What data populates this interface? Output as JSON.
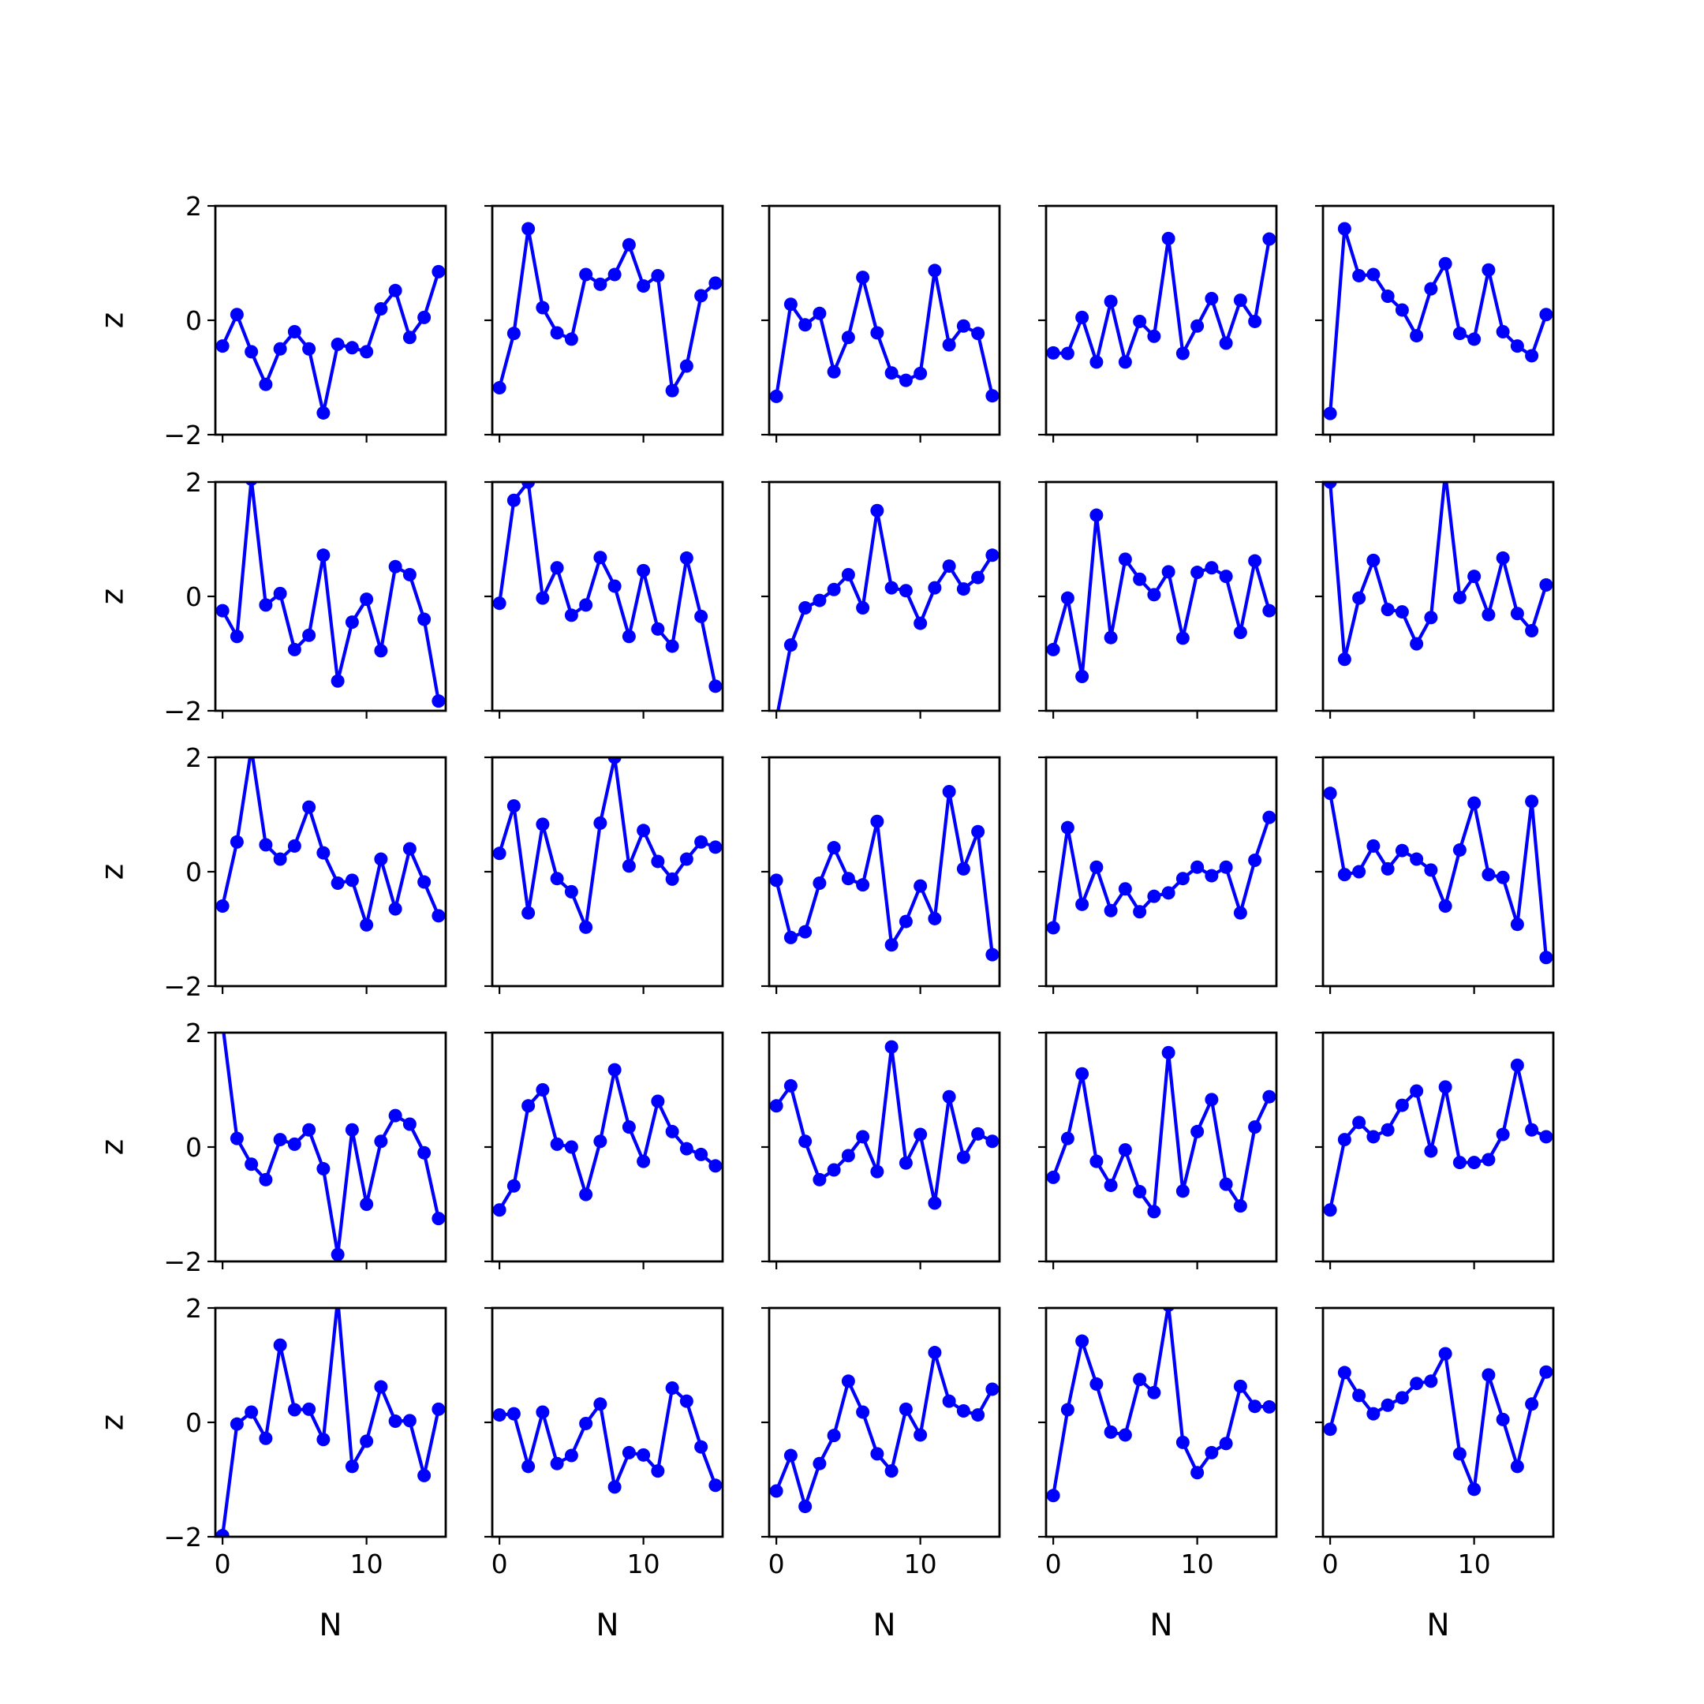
{
  "chart_data": {
    "type": "line",
    "layout": {
      "rows": 5,
      "cols": 5
    },
    "x": [
      0,
      1,
      2,
      3,
      4,
      5,
      6,
      7,
      8,
      9,
      10,
      11,
      12,
      13,
      14,
      15
    ],
    "xlim": [
      -0.5,
      15.5
    ],
    "ylim": [
      -2,
      2
    ],
    "xticks": [
      0,
      10
    ],
    "xtick_labels": [
      "0",
      "10"
    ],
    "yticks": [
      2,
      0,
      -2
    ],
    "ytick_labels": [
      "2",
      "0",
      "−2"
    ],
    "xlabel": "N",
    "ylabel": "z",
    "series_color": "#0000ff",
    "marker": "circle",
    "panels": [
      [
        -0.45,
        0.1,
        -0.55,
        -1.12,
        -0.5,
        -0.2,
        -0.5,
        -1.62,
        -0.42,
        -0.48,
        -0.55,
        0.2,
        0.52,
        -0.3,
        0.05,
        0.85
      ],
      [
        -1.18,
        -0.23,
        1.6,
        0.22,
        -0.22,
        -0.33,
        0.8,
        0.63,
        0.8,
        1.32,
        0.6,
        0.78,
        -1.23,
        -0.8,
        0.43,
        0.65
      ],
      [
        -1.33,
        0.28,
        -0.08,
        0.12,
        -0.9,
        -0.3,
        0.75,
        -0.22,
        -0.92,
        -1.05,
        -0.93,
        0.87,
        -0.43,
        -0.1,
        -0.23,
        -1.32
      ],
      [
        -0.57,
        -0.58,
        0.05,
        -0.73,
        0.33,
        -0.73,
        -0.02,
        -0.28,
        1.43,
        -0.58,
        -0.1,
        0.38,
        -0.4,
        0.35,
        -0.02,
        1.42
      ],
      [
        -1.63,
        1.6,
        0.78,
        0.8,
        0.42,
        0.18,
        -0.27,
        0.55,
        0.99,
        -0.23,
        -0.33,
        0.88,
        -0.2,
        -0.45,
        -0.62,
        0.1
      ],
      [
        -0.25,
        -0.7,
        2.05,
        -0.15,
        0.05,
        -0.93,
        -0.68,
        0.72,
        -1.48,
        -0.45,
        -0.05,
        -0.95,
        0.52,
        0.38,
        -0.4,
        -1.83
      ],
      [
        -0.12,
        1.68,
        2.0,
        -0.03,
        0.5,
        -0.33,
        -0.15,
        0.68,
        0.18,
        -0.7,
        0.45,
        -0.57,
        -0.87,
        0.67,
        -0.35,
        -1.57
      ],
      [
        -2.15,
        -0.85,
        -0.2,
        -0.07,
        0.12,
        0.38,
        -0.2,
        1.5,
        0.15,
        0.1,
        -0.47,
        0.15,
        0.53,
        0.13,
        0.33,
        0.72
      ],
      [
        -0.93,
        -0.03,
        -1.4,
        1.42,
        -0.72,
        0.65,
        0.3,
        0.03,
        0.43,
        -0.73,
        0.42,
        0.5,
        0.35,
        -0.63,
        0.62,
        -0.25
      ],
      [
        2.0,
        -1.1,
        -0.03,
        0.63,
        -0.23,
        -0.27,
        -0.83,
        -0.37,
        2.15,
        -0.02,
        0.35,
        -0.32,
        0.67,
        -0.3,
        -0.6,
        0.2
      ],
      [
        -0.6,
        0.52,
        2.15,
        0.47,
        0.22,
        0.45,
        1.13,
        0.33,
        -0.2,
        -0.15,
        -0.93,
        0.22,
        -0.65,
        0.4,
        -0.18,
        -0.77
      ],
      [
        0.32,
        1.15,
        -0.72,
        0.83,
        -0.12,
        -0.35,
        -0.97,
        0.85,
        2.0,
        0.1,
        0.72,
        0.18,
        -0.13,
        0.22,
        0.52,
        0.43
      ],
      [
        -0.15,
        -1.15,
        -1.05,
        -0.2,
        0.42,
        -0.12,
        -0.23,
        0.88,
        -1.28,
        -0.87,
        -0.25,
        -0.82,
        1.4,
        0.05,
        0.7,
        -1.45
      ],
      [
        -0.98,
        0.77,
        -0.57,
        0.08,
        -0.68,
        -0.3,
        -0.7,
        -0.43,
        -0.37,
        -0.12,
        0.08,
        -0.07,
        0.08,
        -0.72,
        0.2,
        0.95
      ],
      [
        1.37,
        -0.05,
        0.0,
        0.45,
        0.05,
        0.37,
        0.22,
        0.03,
        -0.6,
        0.38,
        1.2,
        -0.05,
        -0.1,
        -0.92,
        1.23,
        -1.5
      ],
      [
        2.15,
        0.15,
        -0.3,
        -0.57,
        0.13,
        0.05,
        0.3,
        -0.38,
        -1.88,
        0.3,
        -1.0,
        0.1,
        0.55,
        0.4,
        -0.1,
        -1.25
      ],
      [
        -1.1,
        -0.68,
        0.72,
        1.0,
        0.05,
        0.0,
        -0.83,
        0.1,
        1.35,
        0.35,
        -0.25,
        0.8,
        0.27,
        -0.03,
        -0.13,
        -0.33
      ],
      [
        0.72,
        1.07,
        0.1,
        -0.57,
        -0.4,
        -0.15,
        0.18,
        -0.43,
        1.75,
        -0.28,
        0.22,
        -0.98,
        0.88,
        -0.18,
        0.23,
        0.1
      ],
      [
        -0.53,
        0.15,
        1.28,
        -0.25,
        -0.67,
        -0.05,
        -0.78,
        -1.13,
        1.65,
        -0.77,
        0.27,
        0.83,
        -0.65,
        -1.03,
        0.35,
        0.88
      ],
      [
        -1.1,
        0.13,
        0.43,
        0.18,
        0.3,
        0.73,
        0.98,
        -0.07,
        1.05,
        -0.27,
        -0.27,
        -0.22,
        0.22,
        1.43,
        0.3,
        0.18
      ],
      [
        -1.98,
        -0.03,
        0.18,
        -0.28,
        1.35,
        0.22,
        0.23,
        -0.3,
        2.15,
        -0.77,
        -0.33,
        0.62,
        0.02,
        0.03,
        -0.93,
        0.23
      ],
      [
        0.13,
        0.15,
        -0.77,
        0.18,
        -0.72,
        -0.58,
        -0.02,
        0.32,
        -1.13,
        -0.53,
        -0.57,
        -0.85,
        0.6,
        0.37,
        -0.43,
        -1.1
      ],
      [
        -1.2,
        -0.58,
        -1.47,
        -0.72,
        -0.23,
        0.72,
        0.18,
        -0.55,
        -0.85,
        0.23,
        -0.22,
        1.22,
        0.37,
        0.2,
        0.13,
        0.58
      ],
      [
        -1.28,
        0.22,
        1.42,
        0.67,
        -0.17,
        -0.22,
        0.75,
        0.52,
        2.05,
        -0.35,
        -0.88,
        -0.53,
        -0.37,
        0.63,
        0.28,
        0.27
      ],
      [
        -0.12,
        0.87,
        0.47,
        0.15,
        0.3,
        0.43,
        0.68,
        0.72,
        1.2,
        -0.55,
        -1.17,
        0.83,
        0.05,
        -0.77,
        0.32,
        0.88
      ]
    ]
  }
}
